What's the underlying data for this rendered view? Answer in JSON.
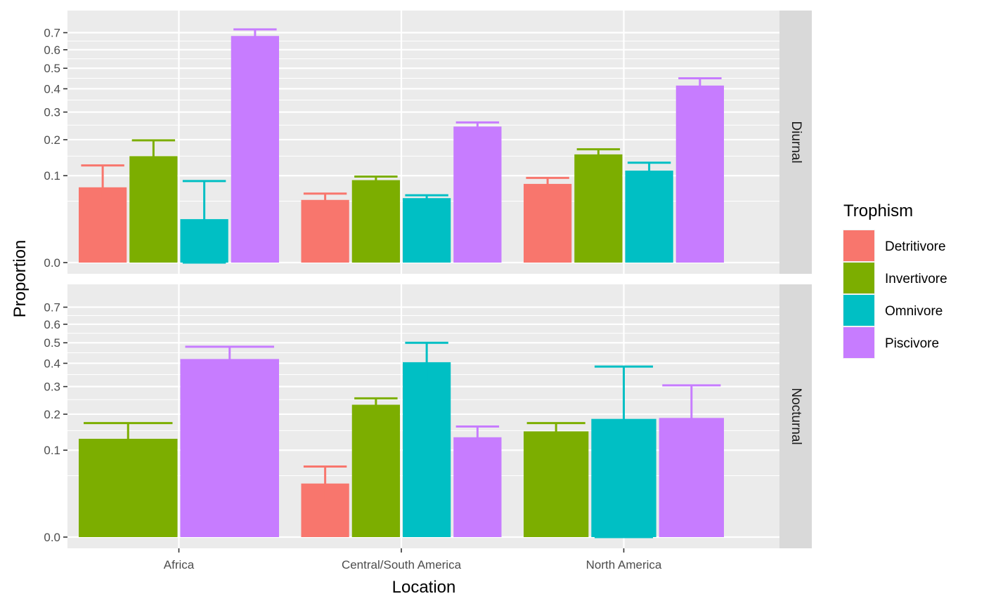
{
  "chart_data": {
    "type": "bar",
    "xlabel": "Location",
    "ylabel": "Proportion",
    "categories": [
      "Africa",
      "Central/South America",
      "North America"
    ],
    "y_ticks": [
      0.0,
      0.1,
      0.2,
      0.3,
      0.4,
      0.5,
      0.6,
      0.7
    ],
    "y_tick_labels": [
      "0.0",
      "0.1",
      "0.2",
      "0.3",
      "0.4",
      "0.5",
      "0.6",
      "0.7"
    ],
    "y_scale": "sqrt",
    "ylim": [
      0,
      0.76
    ],
    "grid": true,
    "legend": {
      "title": "Trophism",
      "position": "right",
      "entries": [
        {
          "name": "Detritivore",
          "color": "#F8766D"
        },
        {
          "name": "Invertivore",
          "color": "#7CAE00"
        },
        {
          "name": "Omnivore",
          "color": "#00BFC4"
        },
        {
          "name": "Piscivore",
          "color": "#C77CFF"
        }
      ]
    },
    "panels": [
      {
        "label": "Diurnal",
        "groups": [
          {
            "category": "Africa",
            "bars": [
              {
                "series": "Detritivore",
                "value": 0.075,
                "err_low": 0.045,
                "err_high": 0.125
              },
              {
                "series": "Invertivore",
                "value": 0.15,
                "err_low": 0.12,
                "err_high": 0.198
              },
              {
                "series": "Omnivore",
                "value": 0.025,
                "err_low": 0.0,
                "err_high": 0.088
              },
              {
                "series": "Piscivore",
                "value": 0.68,
                "err_low": 0.64,
                "err_high": 0.72
              }
            ]
          },
          {
            "category": "Central/South America",
            "bars": [
              {
                "series": "Detritivore",
                "value": 0.052,
                "err_low": 0.044,
                "err_high": 0.063
              },
              {
                "series": "Invertivore",
                "value": 0.09,
                "err_low": 0.085,
                "err_high": 0.098
              },
              {
                "series": "Omnivore",
                "value": 0.055,
                "err_low": 0.05,
                "err_high": 0.06
              },
              {
                "series": "Piscivore",
                "value": 0.245,
                "err_low": 0.228,
                "err_high": 0.26
              }
            ]
          },
          {
            "category": "North America",
            "bars": [
              {
                "series": "Detritivore",
                "value": 0.082,
                "err_low": 0.066,
                "err_high": 0.095
              },
              {
                "series": "Invertivore",
                "value": 0.155,
                "err_low": 0.14,
                "err_high": 0.17
              },
              {
                "series": "Omnivore",
                "value": 0.112,
                "err_low": 0.1,
                "err_high": 0.132
              },
              {
                "series": "Piscivore",
                "value": 0.415,
                "err_low": 0.38,
                "err_high": 0.45
              }
            ]
          }
        ]
      },
      {
        "label": "Nocturnal",
        "groups": [
          {
            "category": "Africa",
            "bars": [
              {
                "series": "Invertivore",
                "value": 0.128,
                "err_low": 0.085,
                "err_high": 0.172
              },
              {
                "series": "Piscivore",
                "value": 0.42,
                "err_low": 0.36,
                "err_high": 0.48
              }
            ]
          },
          {
            "category": "Central/South America",
            "bars": [
              {
                "series": "Detritivore",
                "value": 0.038,
                "err_low": 0.016,
                "err_high": 0.066
              },
              {
                "series": "Invertivore",
                "value": 0.232,
                "err_low": 0.21,
                "err_high": 0.255
              },
              {
                "series": "Omnivore",
                "value": 0.405,
                "err_low": 0.32,
                "err_high": 0.5
              },
              {
                "series": "Piscivore",
                "value": 0.132,
                "err_low": 0.103,
                "err_high": 0.162
              }
            ]
          },
          {
            "category": "North America",
            "bars": [
              {
                "series": "Invertivore",
                "value": 0.148,
                "err_low": 0.125,
                "err_high": 0.172
              },
              {
                "series": "Omnivore",
                "value": 0.185,
                "err_low": 0.0,
                "err_high": 0.385
              },
              {
                "series": "Piscivore",
                "value": 0.188,
                "err_low": 0.095,
                "err_high": 0.305
              }
            ]
          }
        ]
      }
    ]
  }
}
